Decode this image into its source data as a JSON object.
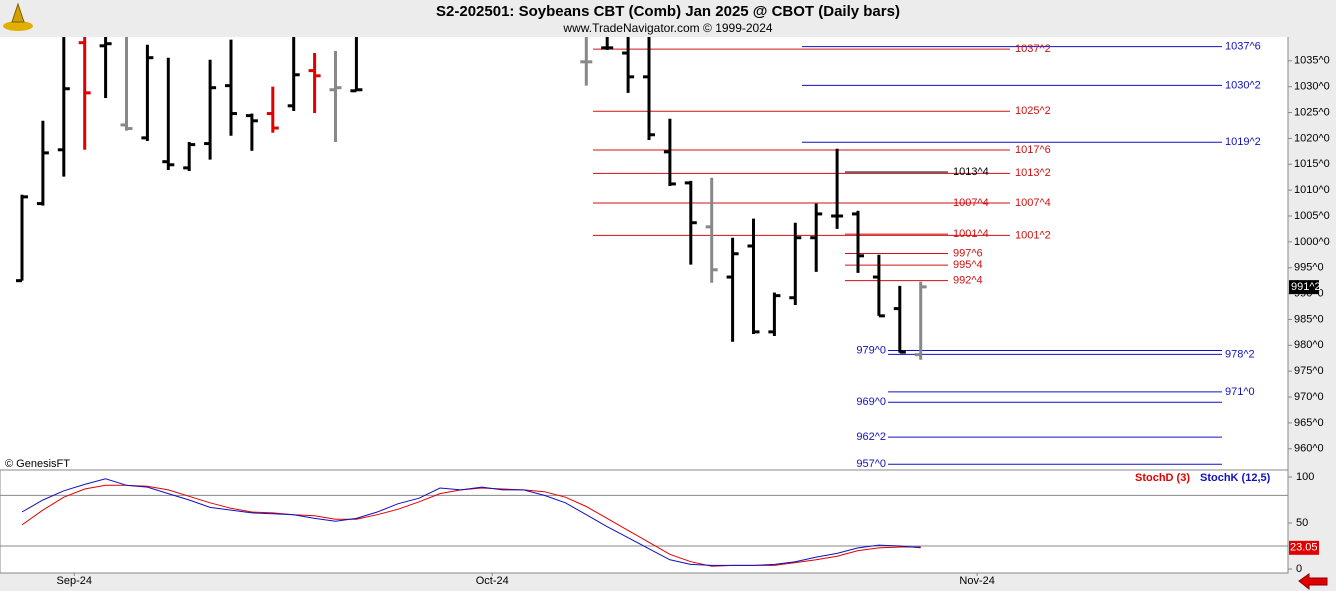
{
  "header": {
    "title": "S2-202501:  Soybeans CBT (Comb) Jan 2025 @ CBOT  (Daily bars)",
    "subtitle": "www.TradeNavigator.com © 1999-2024"
  },
  "watermark": "© GenesisFT",
  "chart_data": [
    {
      "type": "ohlc",
      "categories": [
        null,
        null,
        null,
        null,
        null,
        null,
        null,
        null,
        null,
        null,
        null,
        null,
        null,
        null,
        null,
        null,
        null,
        null,
        null,
        null,
        null,
        null,
        null,
        null,
        null,
        null,
        null,
        null,
        null,
        null,
        null,
        null,
        null,
        null,
        null,
        null,
        null,
        null,
        null,
        null,
        null,
        null,
        null,
        null
      ],
      "xticks": [
        {
          "value": 2.5,
          "label": "Sep-24"
        },
        {
          "value": 22.5,
          "label": "Oct-24"
        },
        {
          "value": 45.7,
          "label": "Nov-24"
        }
      ],
      "open": [
        992.5,
        1007.4,
        1017.8,
        1038.5,
        1037.9,
        1022.6,
        1020.1,
        1015.5,
        1014.3,
        1019.0,
        1030.2,
        1024.4,
        1024.8,
        1026.3,
        1033.1,
        1029.4,
        1029.2,
        null,
        null,
        null,
        null,
        null,
        null,
        null,
        null,
        null,
        null,
        1034.8,
        1037.5,
        1036.5,
        1031.9,
        1017.4,
        1011.4,
        1002.9,
        993.2,
        999.2,
        982.6,
        989.2,
        1000.8,
        1005.0,
        1005.4,
        993.2,
        987.1,
        978.2
      ],
      "high": [
        1009.1,
        1023.4,
        1039.6,
        1039.6,
        1039.6,
        1039.6,
        1038.1,
        1035.6,
        1019.3,
        1035.2,
        1039.1,
        1024.8,
        1030.0,
        1039.6,
        1036.5,
        1036.9,
        1039.6,
        null,
        null,
        null,
        null,
        null,
        null,
        null,
        null,
        null,
        null,
        1039.6,
        1039.6,
        1039.6,
        1039.6,
        1023.8,
        1011.8,
        1012.4,
        1000.8,
        1004.5,
        990.2,
        1003.7,
        1007.4,
        1018.0,
        1006.0,
        997.5,
        991.5,
        992.3
      ],
      "low": [
        992.5,
        1007.0,
        1012.6,
        1017.8,
        1027.8,
        1021.5,
        1019.5,
        1013.9,
        1013.7,
        1015.9,
        1020.5,
        1017.6,
        1021.1,
        1025.3,
        1024.9,
        1019.3,
        1029.2,
        null,
        null,
        null,
        null,
        null,
        null,
        null,
        null,
        null,
        null,
        1030.2,
        1037.1,
        1028.8,
        1019.7,
        1010.8,
        995.6,
        992.1,
        980.7,
        982.2,
        981.8,
        987.8,
        994.2,
        1002.5,
        994.0,
        985.7,
        978.6,
        977.2
      ],
      "close": [
        1008.7,
        1017.2,
        1029.6,
        1028.8,
        1038.3,
        1021.9,
        1035.6,
        1014.9,
        1018.8,
        1029.8,
        1024.8,
        1023.4,
        1022.0,
        1032.3,
        1032.1,
        1029.8,
        1029.4,
        null,
        null,
        null,
        null,
        null,
        null,
        null,
        null,
        null,
        null,
        1034.8,
        1037.5,
        1031.9,
        1020.7,
        1011.2,
        1003.7,
        994.6,
        997.7,
        982.6,
        989.6,
        1000.8,
        1005.4,
        1005.0,
        997.3,
        985.7,
        978.7,
        991.3
      ],
      "colors": [
        "#000000",
        "#000000",
        "#000000",
        "#e00000",
        "#000000",
        "#888888",
        "#000000",
        "#000000",
        "#000000",
        "#000000",
        "#000000",
        "#000000",
        "#e00000",
        "#000000",
        "#e00000",
        "#888888",
        "#000000",
        null,
        null,
        null,
        null,
        null,
        null,
        null,
        null,
        null,
        null,
        "#888888",
        "#000000",
        "#000000",
        "#000000",
        "#000000",
        "#000000",
        "#888888",
        "#000000",
        "#000000",
        "#000000",
        "#000000",
        "#000000",
        "#000000",
        "#000000",
        "#000000",
        "#000000",
        "#888888"
      ],
      "ylim": [
        955.9,
        1039.6
      ],
      "yticks": [
        {
          "value": 960,
          "label": "960^0"
        },
        {
          "value": 965,
          "label": "965^0"
        },
        {
          "value": 970,
          "label": "970^0"
        },
        {
          "value": 975,
          "label": "975^0"
        },
        {
          "value": 980,
          "label": "980^0"
        },
        {
          "value": 985,
          "label": "985^0"
        },
        {
          "value": 990,
          "label": "990^0"
        },
        {
          "value": 995,
          "label": "995^0"
        },
        {
          "value": 1000,
          "label": "1000^0"
        },
        {
          "value": 1005,
          "label": "1005^0"
        },
        {
          "value": 1010,
          "label": "1010^0"
        },
        {
          "value": 1015,
          "label": "1015^0"
        },
        {
          "value": 1020,
          "label": "1020^0"
        },
        {
          "value": 1025,
          "label": "1025^0"
        },
        {
          "value": 1030,
          "label": "1030^0"
        },
        {
          "value": 1035,
          "label": "1035^0"
        }
      ],
      "last": {
        "value": 991.25,
        "label": "991^2"
      },
      "levels": [
        {
          "value": 1037.75,
          "label": "1037^6",
          "color": "#1010c0"
        },
        {
          "value": 1030.25,
          "label": "1030^2",
          "color": "#1010c0"
        },
        {
          "value": 1019.25,
          "label": "1019^2",
          "color": "#1010c0"
        },
        {
          "value": 978.25,
          "label": "978^2",
          "color": "#1010c0"
        },
        {
          "value": 971,
          "label": "971^0",
          "color": "#1010c0"
        },
        {
          "value": 979,
          "label": "979^0",
          "color": "#1010c0"
        },
        {
          "value": 969,
          "label": "969^0",
          "color": "#1010c0"
        },
        {
          "value": 962.25,
          "label": "962^2",
          "color": "#1010c0"
        },
        {
          "value": 957,
          "label": "957^0",
          "color": "#1010c0"
        },
        {
          "value": 1037.25,
          "label": "1037^2",
          "color": "#d01010"
        },
        {
          "value": 1025.25,
          "label": "1025^2",
          "color": "#d01010"
        },
        {
          "value": 1017.75,
          "label": "1017^6",
          "color": "#d01010"
        },
        {
          "value": 1013.25,
          "label": "1013^2",
          "color": "#d01010"
        },
        {
          "value": 1007.5,
          "label": "1007^4",
          "color": "#d01010"
        },
        {
          "value": 1001.25,
          "label": "1001^2",
          "color": "#d01010"
        },
        {
          "value": 1013.5,
          "label": "1013^4",
          "color": "#000000"
        },
        {
          "value": 1007.5,
          "label": "1007^4",
          "color": "#d01010"
        },
        {
          "value": 1001.5,
          "label": "1001^4",
          "color": "#d01010"
        },
        {
          "value": 997.75,
          "label": "997^6",
          "color": "#d01010"
        },
        {
          "value": 995.5,
          "label": "995^4",
          "color": "#d01010"
        },
        {
          "value": 992.5,
          "label": "992^4",
          "color": "#d01010"
        }
      ]
    },
    {
      "type": "line",
      "series": [
        {
          "name": "StochD (3)",
          "color": "#e00000",
          "values": [
            48,
            64,
            78,
            87,
            91,
            91,
            90,
            86,
            79,
            72,
            66,
            62,
            61,
            59,
            58,
            54,
            54,
            59,
            65,
            73,
            82,
            86,
            88,
            87,
            86,
            84,
            78,
            68,
            55,
            42,
            29,
            16,
            8,
            3,
            4,
            4,
            4,
            7,
            10,
            14,
            20,
            23,
            24,
            24
          ]
        },
        {
          "name": "StochK (12,5)",
          "color": "#1010c0",
          "values": [
            62,
            75,
            85,
            92,
            98,
            91,
            89,
            82,
            75,
            67,
            64,
            61,
            60,
            59,
            55,
            52,
            55,
            62,
            71,
            77,
            88,
            86,
            89,
            86,
            86,
            80,
            72,
            59,
            46,
            34,
            22,
            10,
            5,
            4,
            4,
            4,
            5,
            8,
            13,
            17,
            23,
            26,
            25,
            23.05
          ]
        }
      ],
      "ylim": [
        -4.3,
        107.6
      ],
      "yticks": [
        0,
        50,
        100
      ],
      "hlines": [
        80,
        25
      ]
    }
  ]
}
